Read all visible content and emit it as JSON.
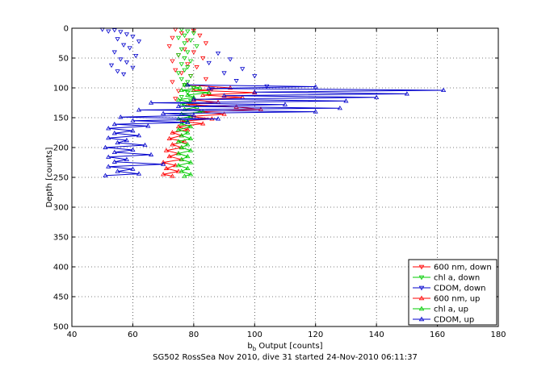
{
  "chart_data": {
    "type": "scatter",
    "title": "",
    "xlabel_main": "b",
    "xlabel_sub": "b",
    "xlabel_rest": " Output [counts]",
    "ylabel": "Depth [counts]",
    "footer": "SG502 RossSea Nov 2010, dive 31 started 24-Nov-2010 06:11:37",
    "xlim": [
      40,
      180
    ],
    "ylim": [
      0,
      500
    ],
    "y_reversed": true,
    "grid": true,
    "legend_position": "bottom-right",
    "xticks": [
      40,
      60,
      80,
      100,
      120,
      140,
      160,
      180
    ],
    "yticks": [
      0,
      50,
      100,
      150,
      200,
      250,
      300,
      350,
      400,
      450,
      500
    ],
    "series": [
      {
        "name": "600 nm, down",
        "color": "#ff0000",
        "marker": "down",
        "linestyle": "none",
        "points": [
          [
            74,
            2
          ],
          [
            80,
            4
          ],
          [
            76,
            8
          ],
          [
            82,
            12
          ],
          [
            73,
            16
          ],
          [
            78,
            20
          ],
          [
            84,
            25
          ],
          [
            72,
            30
          ],
          [
            77,
            35
          ],
          [
            80,
            40
          ],
          [
            75,
            45
          ],
          [
            83,
            50
          ],
          [
            73,
            55
          ],
          [
            78,
            60
          ],
          [
            81,
            65
          ],
          [
            74,
            70
          ],
          [
            76,
            75
          ],
          [
            79,
            80
          ],
          [
            84,
            85
          ],
          [
            73,
            90
          ],
          [
            77,
            95
          ],
          [
            80,
            100
          ],
          [
            75,
            105
          ],
          [
            85,
            110
          ],
          [
            74,
            118
          ]
        ]
      },
      {
        "name": "chl a, down",
        "color": "#00cc00",
        "marker": "down",
        "linestyle": "none",
        "points": [
          [
            76,
            2
          ],
          [
            78,
            5
          ],
          [
            80,
            8
          ],
          [
            77,
            12
          ],
          [
            75,
            16
          ],
          [
            79,
            20
          ],
          [
            77,
            25
          ],
          [
            81,
            30
          ],
          [
            76,
            35
          ],
          [
            78,
            40
          ],
          [
            75,
            45
          ],
          [
            77,
            50
          ],
          [
            79,
            55
          ],
          [
            76,
            60
          ],
          [
            78,
            65
          ],
          [
            77,
            70
          ],
          [
            75,
            75
          ],
          [
            79,
            80
          ],
          [
            76,
            85
          ],
          [
            78,
            90
          ],
          [
            77,
            95
          ],
          [
            80,
            100
          ],
          [
            78,
            108
          ],
          [
            76,
            115
          ],
          [
            79,
            122
          ]
        ]
      },
      {
        "name": "CDOM, down",
        "color": "#0000cc",
        "marker": "down",
        "linestyle": "none",
        "points": [
          [
            50,
            2
          ],
          [
            54,
            3
          ],
          [
            52,
            5
          ],
          [
            56,
            6
          ],
          [
            58,
            10
          ],
          [
            60,
            14
          ],
          [
            55,
            18
          ],
          [
            62,
            22
          ],
          [
            57,
            28
          ],
          [
            59,
            33
          ],
          [
            54,
            40
          ],
          [
            61,
            46
          ],
          [
            56,
            52
          ],
          [
            58,
            57
          ],
          [
            53,
            62
          ],
          [
            60,
            66
          ],
          [
            55,
            72
          ],
          [
            57,
            77
          ],
          [
            88,
            42
          ],
          [
            92,
            52
          ],
          [
            85,
            58
          ],
          [
            96,
            68
          ],
          [
            90,
            75
          ],
          [
            100,
            80
          ],
          [
            94,
            88
          ],
          [
            104,
            97
          ],
          [
            86,
            102
          ]
        ]
      },
      {
        "name": "600 nm, up",
        "color": "#ff0000",
        "marker": "up",
        "linestyle": "solid",
        "points": [
          [
            78,
            95
          ],
          [
            92,
            100
          ],
          [
            80,
            104
          ],
          [
            100,
            108
          ],
          [
            83,
            112
          ],
          [
            96,
            116
          ],
          [
            80,
            120
          ],
          [
            88,
            124
          ],
          [
            78,
            128
          ],
          [
            94,
            132
          ],
          [
            102,
            136
          ],
          [
            82,
            140
          ],
          [
            90,
            144
          ],
          [
            79,
            148
          ],
          [
            86,
            152
          ],
          [
            76,
            156
          ],
          [
            83,
            160
          ],
          [
            75,
            165
          ],
          [
            78,
            170
          ],
          [
            73,
            175
          ],
          [
            76,
            180
          ],
          [
            72,
            185
          ],
          [
            77,
            190
          ],
          [
            73,
            195
          ],
          [
            76,
            200
          ],
          [
            71,
            205
          ],
          [
            75,
            210
          ],
          [
            72,
            215
          ],
          [
            76,
            220
          ],
          [
            70,
            225
          ],
          [
            74,
            230
          ],
          [
            71,
            235
          ],
          [
            75,
            240
          ],
          [
            70,
            245
          ],
          [
            73,
            248
          ]
        ]
      },
      {
        "name": "chl a, up",
        "color": "#00cc00",
        "marker": "up",
        "linestyle": "solid",
        "points": [
          [
            77,
            95
          ],
          [
            82,
            100
          ],
          [
            76,
            104
          ],
          [
            85,
            108
          ],
          [
            78,
            112
          ],
          [
            80,
            116
          ],
          [
            75,
            120
          ],
          [
            79,
            124
          ],
          [
            76,
            128
          ],
          [
            81,
            132
          ],
          [
            77,
            136
          ],
          [
            83,
            140
          ],
          [
            76,
            144
          ],
          [
            79,
            148
          ],
          [
            75,
            152
          ],
          [
            78,
            156
          ],
          [
            76,
            160
          ],
          [
            79,
            165
          ],
          [
            75,
            170
          ],
          [
            78,
            175
          ],
          [
            76,
            180
          ],
          [
            79,
            185
          ],
          [
            75,
            190
          ],
          [
            78,
            195
          ],
          [
            76,
            200
          ],
          [
            79,
            205
          ],
          [
            75,
            210
          ],
          [
            78,
            215
          ],
          [
            76,
            220
          ],
          [
            79,
            225
          ],
          [
            75,
            230
          ],
          [
            78,
            235
          ],
          [
            76,
            240
          ],
          [
            79,
            245
          ],
          [
            77,
            248
          ]
        ]
      },
      {
        "name": "CDOM, up",
        "color": "#0000cc",
        "marker": "up",
        "linestyle": "solid",
        "points": [
          [
            78,
            95
          ],
          [
            120,
            98
          ],
          [
            85,
            101
          ],
          [
            162,
            104
          ],
          [
            100,
            107
          ],
          [
            150,
            110
          ],
          [
            90,
            113
          ],
          [
            140,
            116
          ],
          [
            80,
            119
          ],
          [
            130,
            122
          ],
          [
            66,
            125
          ],
          [
            110,
            128
          ],
          [
            75,
            131
          ],
          [
            128,
            134
          ],
          [
            62,
            137
          ],
          [
            120,
            140
          ],
          [
            70,
            143
          ],
          [
            80,
            146
          ],
          [
            56,
            149
          ],
          [
            88,
            152
          ],
          [
            60,
            155
          ],
          [
            78,
            158
          ],
          [
            54,
            161
          ],
          [
            65,
            164
          ],
          [
            52,
            168
          ],
          [
            60,
            172
          ],
          [
            54,
            176
          ],
          [
            62,
            180
          ],
          [
            52,
            184
          ],
          [
            58,
            188
          ],
          [
            55,
            192
          ],
          [
            64,
            196
          ],
          [
            51,
            200
          ],
          [
            60,
            204
          ],
          [
            54,
            208
          ],
          [
            66,
            212
          ],
          [
            52,
            216
          ],
          [
            58,
            220
          ],
          [
            54,
            224
          ],
          [
            70,
            228
          ],
          [
            52,
            232
          ],
          [
            60,
            236
          ],
          [
            55,
            240
          ],
          [
            62,
            244
          ],
          [
            51,
            247
          ]
        ]
      }
    ]
  }
}
